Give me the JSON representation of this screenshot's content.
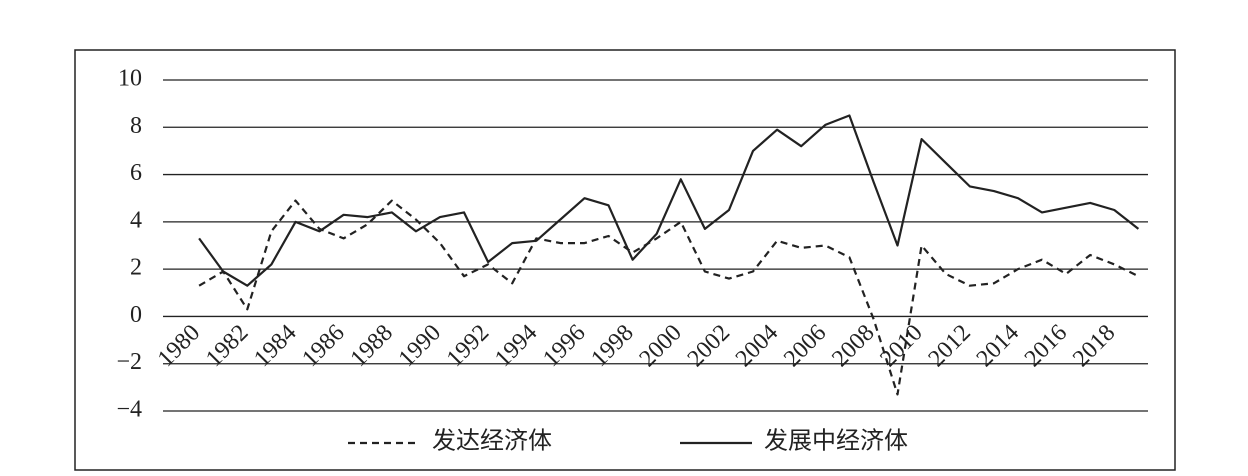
{
  "chart_data": {
    "type": "line",
    "x": [
      1980,
      1981,
      1982,
      1983,
      1984,
      1985,
      1986,
      1987,
      1988,
      1989,
      1990,
      1991,
      1992,
      1993,
      1994,
      1995,
      1996,
      1997,
      1998,
      1999,
      2000,
      2001,
      2002,
      2003,
      2004,
      2005,
      2006,
      2007,
      2008,
      2009,
      2010,
      2011,
      2012,
      2013,
      2014,
      2015,
      2016,
      2017,
      2018,
      2019
    ],
    "series": [
      {
        "name": "发达经济体",
        "color": "#222222",
        "dash": true,
        "values": [
          1.3,
          1.9,
          0.3,
          3.6,
          4.9,
          3.7,
          3.3,
          3.9,
          4.9,
          4.1,
          3.1,
          1.7,
          2.2,
          1.4,
          3.3,
          3.1,
          3.1,
          3.4,
          2.7,
          3.3,
          4.0,
          1.9,
          1.6,
          1.9,
          3.2,
          2.9,
          3.0,
          2.5,
          -0.1,
          -3.3,
          3.0,
          1.8,
          1.3,
          1.4,
          2.0,
          2.4,
          1.8,
          2.6,
          2.2,
          1.7
        ]
      },
      {
        "name": "发展中经济体",
        "color": "#222222",
        "dash": false,
        "values": [
          3.3,
          1.9,
          1.3,
          2.2,
          4.0,
          3.6,
          4.3,
          4.2,
          4.4,
          3.6,
          4.2,
          4.4,
          2.3,
          3.1,
          3.2,
          4.1,
          5.0,
          4.7,
          2.4,
          3.5,
          5.8,
          3.7,
          4.5,
          7.0,
          7.9,
          7.2,
          8.1,
          8.5,
          5.7,
          3.0,
          7.5,
          6.5,
          5.5,
          5.3,
          5.0,
          4.4,
          4.6,
          4.8,
          4.5,
          3.7
        ]
      }
    ],
    "xlim": [
      1978.5,
      2019.4
    ],
    "xticks": [
      1980,
      1982,
      1984,
      1986,
      1988,
      1990,
      1992,
      1994,
      1996,
      1998,
      2000,
      2002,
      2004,
      2006,
      2008,
      2010,
      2012,
      2014,
      2016,
      2018
    ],
    "ylim": [
      -4,
      10
    ],
    "yticks": [
      {
        "value": -4,
        "label": "−4"
      },
      {
        "value": -2,
        "label": "−2"
      },
      0,
      2,
      4,
      6,
      8,
      10
    ],
    "grid": true
  }
}
